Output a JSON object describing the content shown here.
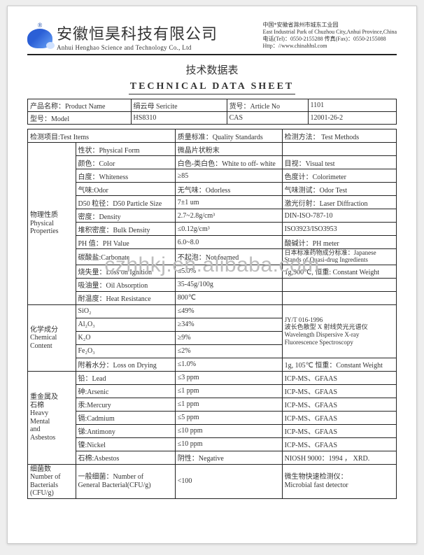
{
  "company": {
    "cn": "安徽恒昊科技有限公司",
    "en": "Anhui Henghao Science and Technology Co., Ltd",
    "addr_cn": "中国*安徽省滁州市城东工业园",
    "addr_en": "East Industrial Park of Chuzhou City,Anhui Province,China",
    "tel": "电话(Tel)：0550-2155288   传真(Fax)：0550-2155088",
    "web": "Http：//www.chinahhsl.com"
  },
  "titles": {
    "cn": "技术数据表",
    "en": "TECHNICAL   DATA   SHEET"
  },
  "header": {
    "product_label": "产品名称：Product Name",
    "product_value": "绢云母  Sericite",
    "article_label": "货号：Article No",
    "article_value": "1101",
    "model_label": "型号：Model",
    "model_value": "HS8310",
    "cas_label": "CAS",
    "cas_value": "12001-26-2"
  },
  "cols": {
    "test": "检测项目:Test Items",
    "std": "质量标准：Quality Standards",
    "method": "检测方法： Test Methods"
  },
  "sections": {
    "phys": "物理性质\nPhysical\nProperties",
    "chem": "化学成分\nChemical\nContent",
    "heavy": "重金属及\n石棉\nHeavy\nMental\nand\nAsbestos",
    "bact": "细菌数\nNumber of\nBacterials\n(CFU/g)"
  },
  "r": {
    "p1i": "性状：Physical Form",
    "p1s": "微晶片状粉末",
    "p1m": "",
    "p2i": "颜色：Color",
    "p2s": "白色-类白色：White to off- white",
    "p2m": "目视：Visual test",
    "p3i": "白度：Whiteness",
    "p3s": "≥85",
    "p3m": "色度计：Colorimeter",
    "p4i": "气味:Odor",
    "p4s": "无气味：Odorless",
    "p4m": "气味测试：Odor Test",
    "p5i": "D50 粒径：D50 Particle Size",
    "p5s": "7±1  um",
    "p5m": "激光衍射：Laser Diffraction",
    "p6i": "密度：Density",
    "p6s": "2.7~2.8g/cm³",
    "p6m": "DIN-ISO-787-10",
    "p7i": "堆积密度：Bulk Density",
    "p7s": "≤0.12g/cm³",
    "p7m": "ISO3923/ISO3953",
    "p8i": "PH 值：PH Value",
    "p8s": "6.0~8.0",
    "p8m": "酸碱计：PH meter",
    "p9i": "碳酸盐:Carbonate",
    "p9s": "不起泡：Not foamed",
    "p9m": "日本标准药物成分标准：Japanese\nStands of Quasi-drug Ingredients",
    "p10i": "烧失量：Loss on Ignition",
    "p10s": "≤5.0%",
    "p10m": "1g,900℃, 恒重: Constant Weight",
    "p11i": "吸油量：Oil Absorption",
    "p11s": "35-45g/100g",
    "p11m": "",
    "p12i": "耐温度：Heat Resistance",
    "p12s": "800℃",
    "p12m": "",
    "c1i": "SiO₂",
    "c1s": "≤49%",
    "cm": "JY/T 016-1996\n波长色散型 X 射线荧光光谱仪\nWavelength Dispersive X-ray\nFluorescence Spectroscopy",
    "c2i": "Al₂O₃",
    "c2s": "≥34%",
    "c3i": "K₂O",
    "c3s": "≥9%",
    "c4i": "Fe₂O₃",
    "c4s": "≤2%",
    "c5i": "附着水分：Loss on Drying",
    "c5s": "≤1.0%",
    "c5m": "1g, 105℃  恒重：Constant Weight",
    "h1i": "铅：Lead",
    "h1s": "≤3 ppm",
    "hm": "ICP-MS、GFAAS",
    "h2i": "砷:Arsenic",
    "h2s": "≤1 ppm",
    "h3i": "汞:Mercury",
    "h3s": "≤1 ppm",
    "h4i": "镉:Cadmium",
    "h4s": "≤5 ppm",
    "h5i": "锑:Antimony",
    "h5s": "≤10 ppm",
    "h6i": "镍:Nickel",
    "h6s": "≤10 ppm",
    "h7i": "石棉:Asbestos",
    "h7s": "阴性：Negative",
    "h7m": "NIOSH 9000：1994 ， XRD.",
    "b1i": "一般细菌：Number of\nGeneral Bacterial(CFU/g)",
    "b1s": "<100",
    "b1m": "微生物快速检测仪：\nMicrobial fast detector"
  },
  "watermark": "czhhkj.en.alibaba.com"
}
